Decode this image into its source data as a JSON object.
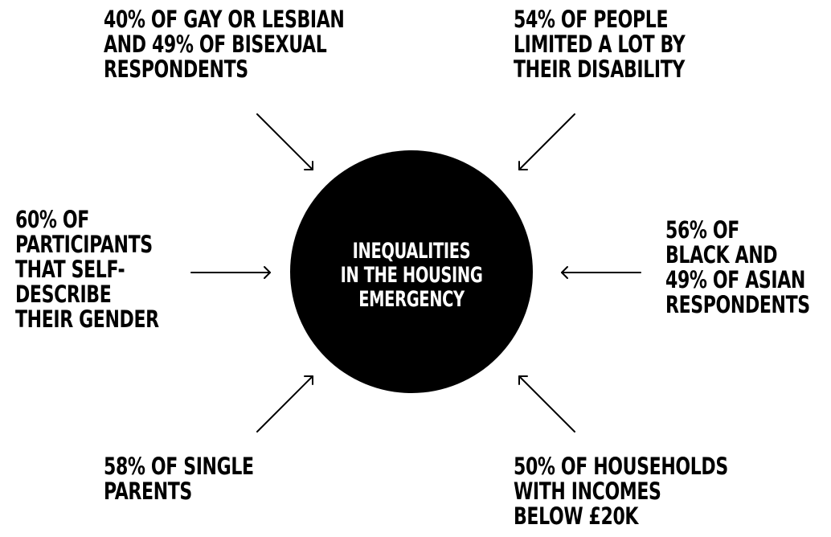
{
  "center": {
    "lines": [
      "INEQUALITIES",
      "IN THE HOUSING",
      "EMERGENCY"
    ],
    "fill_color": "#000000",
    "text_color": "#ffffff"
  },
  "stats": {
    "top_left": [
      "40% OF GAY OR LESBIAN",
      "AND 49% OF BISEXUAL",
      "RESPONDENTS"
    ],
    "top_right": [
      "54% OF PEOPLE",
      "LIMITED A LOT BY",
      "THEIR DISABILITY"
    ],
    "left": [
      "60% OF",
      "PARTICIPANTS",
      "THAT SELF-",
      "DESCRIBE",
      "THEIR GENDER"
    ],
    "right": [
      "56% OF",
      "BLACK AND",
      "49% OF ASIAN",
      "RESPONDENTS"
    ],
    "bottom_left": [
      "58% OF SINGLE",
      "PARENTS"
    ],
    "bottom_right": [
      "50% OF HOUSEHOLDS",
      "WITH INCOMES",
      "BELOW £20K"
    ]
  }
}
